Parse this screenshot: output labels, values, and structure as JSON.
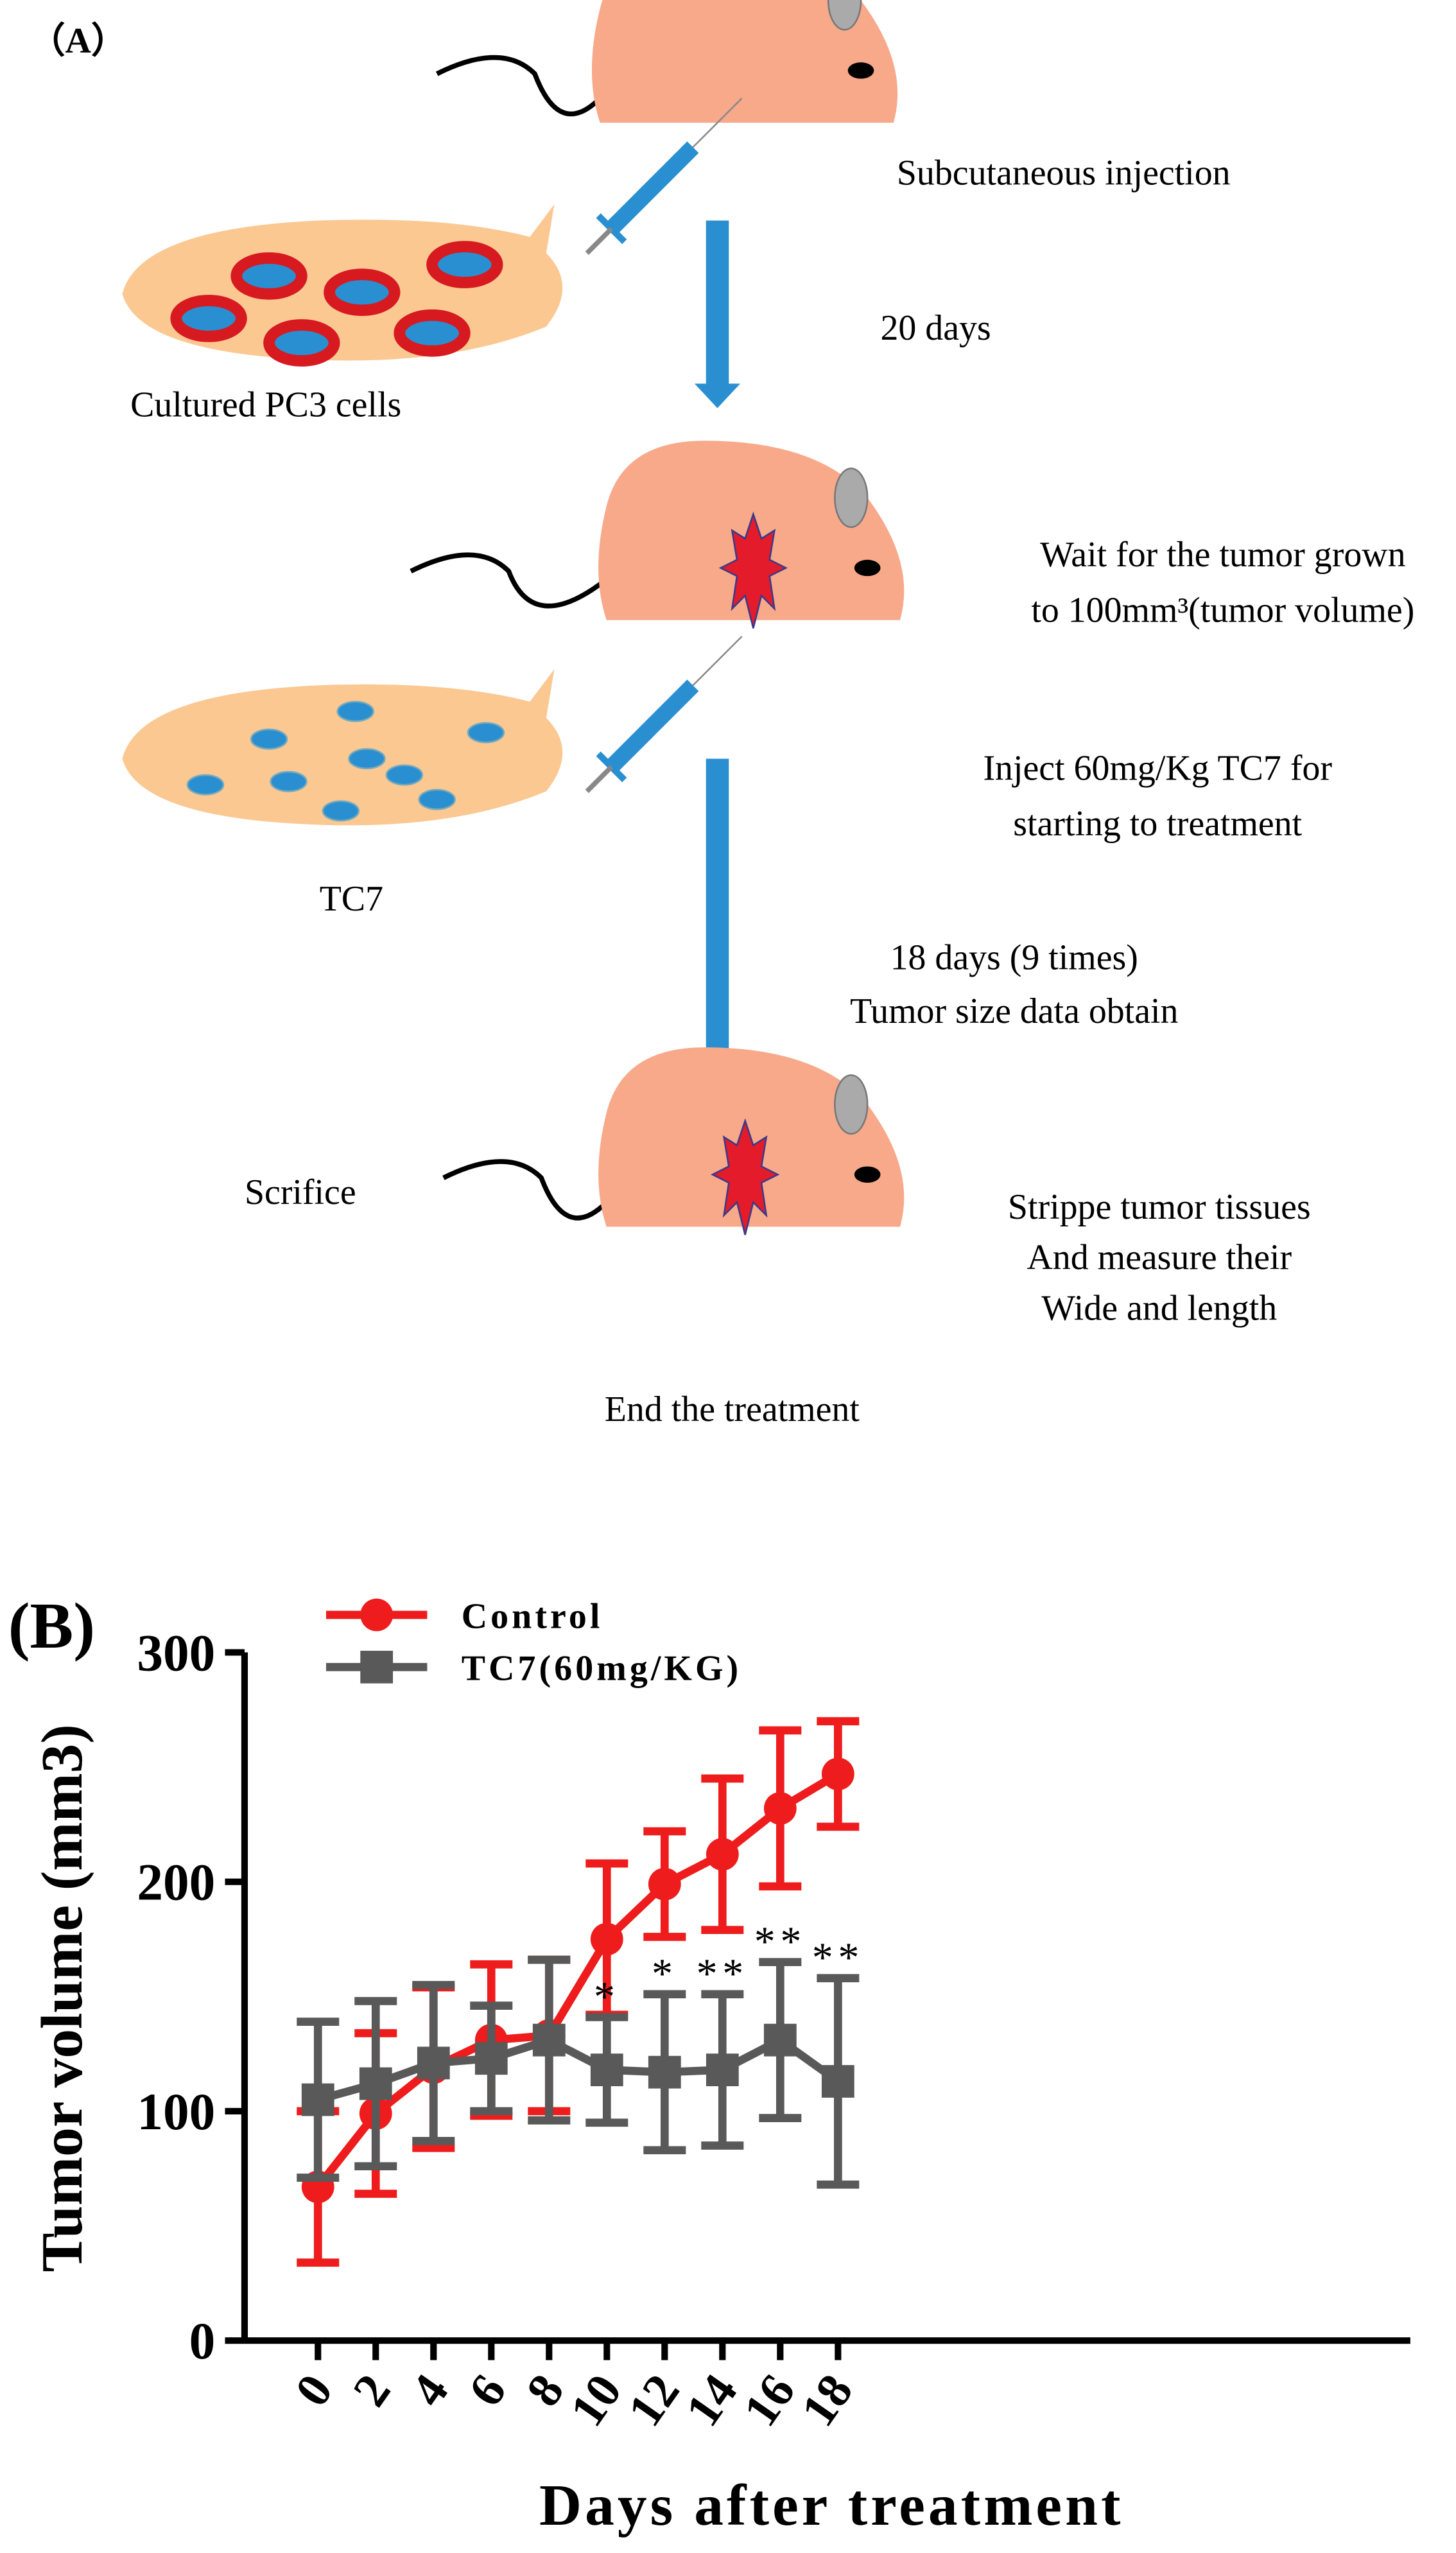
{
  "diagram": {
    "panel_label": "（A）",
    "texts": [
      "Subcutaneous injection",
      "20 days",
      "Cultured PC3 cells",
      "Wait for the tumor grown",
      "to 100mm³(tumor volume)",
      "Inject 60mg/Kg TC7 for",
      "starting to treatment",
      "TC7",
      "18 days (9 times)",
      "Tumor size data obtain",
      "Scrifice",
      "Strippe tumor tissues",
      "And measure their",
      "Wide and length",
      "End the treatment"
    ]
  },
  "chart_data": {
    "type": "line",
    "panel_label": "(B)",
    "x_label": "Days after treatment",
    "y_label": "Tumor volume (mm3)",
    "categories": [
      "0",
      "2",
      "4",
      "6",
      "8",
      "10",
      "12",
      "14",
      "16",
      "18"
    ],
    "ylim": [
      0,
      300
    ],
    "yticks": [
      0,
      100,
      200,
      300
    ],
    "series": [
      {
        "name": "Control",
        "color": "#ee1c1c",
        "marker": "circle",
        "values": [
          67,
          99,
          119,
          131,
          133,
          175,
          199,
          212,
          232,
          247
        ],
        "errors": [
          33,
          35,
          35,
          33,
          33,
          33,
          23,
          33,
          34,
          23
        ]
      },
      {
        "name": "TC7(60mg/KG)",
        "color": "#595959",
        "marker": "square",
        "values": [
          105,
          112,
          121,
          123,
          131,
          118,
          117,
          118,
          131,
          113
        ],
        "errors": [
          34,
          36,
          34,
          23,
          35,
          23,
          34,
          33,
          34,
          45
        ]
      }
    ],
    "annotations": [
      {
        "category": "10",
        "text": "*"
      },
      {
        "category": "12",
        "text": "*"
      },
      {
        "category": "14",
        "text": "**"
      },
      {
        "category": "16",
        "text": "**"
      },
      {
        "category": "18",
        "text": "**"
      }
    ]
  }
}
